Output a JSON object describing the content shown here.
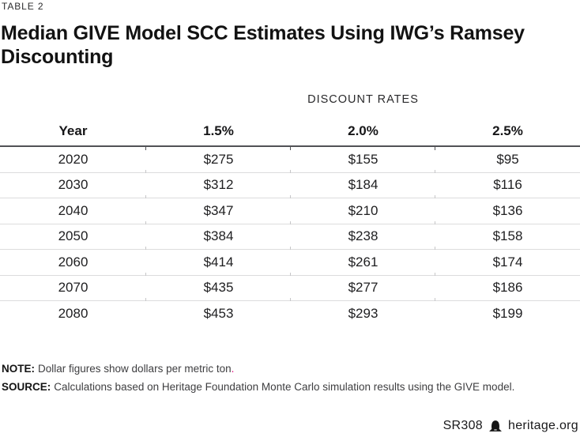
{
  "kicker": "TABLE 2",
  "title": {
    "full": "Median GIVE Model SCC Estimates Using IWG’s Ramsey Discounting",
    "line1": "Median GIVE Model SCC Estimates Using IWG’s Ramsey",
    "line2": "Discounting"
  },
  "table": {
    "group_header": "DISCOUNT RATES",
    "columns": [
      "Year",
      "1.5%",
      "2.0%",
      "2.5%"
    ],
    "rows": [
      {
        "year": "2020",
        "values": [
          "$275",
          "$155",
          "$95"
        ]
      },
      {
        "year": "2030",
        "values": [
          "$312",
          "$184",
          "$116"
        ]
      },
      {
        "year": "2040",
        "values": [
          "$347",
          "$210",
          "$136"
        ]
      },
      {
        "year": "2050",
        "values": [
          "$384",
          "$238",
          "$158"
        ]
      },
      {
        "year": "2060",
        "values": [
          "$414",
          "$261",
          "$174"
        ]
      },
      {
        "year": "2070",
        "values": [
          "$435",
          "$277",
          "$186"
        ]
      },
      {
        "year": "2080",
        "values": [
          "$453",
          "$293",
          "$199"
        ]
      }
    ]
  },
  "note": {
    "label": "NOTE:",
    "text": "Dollar figures show dollars per metric ton",
    "period": "."
  },
  "source": {
    "label": "SOURCE:",
    "text": "Calculations based on Heritage Foundation Monte Carlo simulation results using the GIVE model."
  },
  "footer": {
    "report_id": "SR308",
    "site": "heritage.org",
    "bell_icon": "liberty-bell-icon"
  },
  "colors": {
    "accent_magenta": "#e5097f",
    "header_rule": "#515256",
    "row_line": "#dcdcdd",
    "text": "#1d1d1f"
  },
  "chart_data": {
    "type": "table",
    "title": "Median GIVE Model SCC Estimates Using IWG’s Ramsey Discounting",
    "group_header": "DISCOUNT RATES",
    "columns": [
      "Year",
      "1.5%",
      "2.0%",
      "2.5%"
    ],
    "units": "dollars per metric ton",
    "rows": [
      [
        2020,
        275,
        155,
        95
      ],
      [
        2030,
        312,
        184,
        116
      ],
      [
        2040,
        347,
        210,
        136
      ],
      [
        2050,
        384,
        238,
        158
      ],
      [
        2060,
        414,
        261,
        174
      ],
      [
        2070,
        435,
        277,
        186
      ],
      [
        2080,
        453,
        293,
        199
      ]
    ]
  }
}
